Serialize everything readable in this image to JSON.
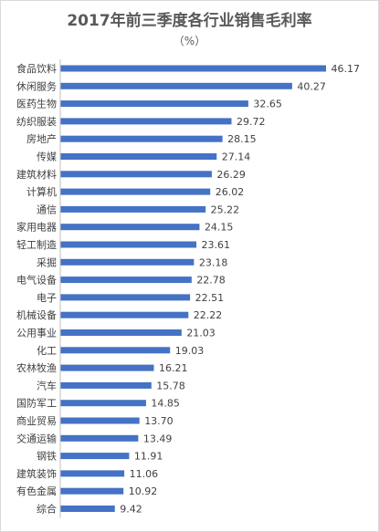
{
  "chart_data": {
    "type": "bar",
    "orientation": "horizontal",
    "title": "2017年前三季度各行业销售毛利率",
    "subtitle": "（%）",
    "categories": [
      "食品饮料",
      "休闲服务",
      "医药生物",
      "纺织服装",
      "房地产",
      "传媒",
      "建筑材料",
      "计算机",
      "通信",
      "家用电器",
      "轻工制造",
      "采掘",
      "电气设备",
      "电子",
      "机械设备",
      "公用事业",
      "化工",
      "农林牧渔",
      "汽车",
      "国防军工",
      "商业贸易",
      "交通运输",
      "钢铁",
      "建筑装饰",
      "有色金属",
      "综合"
    ],
    "values": [
      46.17,
      40.27,
      32.65,
      29.72,
      28.15,
      27.14,
      26.29,
      26.02,
      25.22,
      24.15,
      23.61,
      23.18,
      22.78,
      22.51,
      22.22,
      21.03,
      19.03,
      16.21,
      15.78,
      14.85,
      13.7,
      13.49,
      11.91,
      11.06,
      10.92,
      9.42
    ],
    "value_labels": [
      "46.17",
      "40.27",
      "32.65",
      "29.72",
      "28.15",
      "27.14",
      "26.29",
      "26.02",
      "25.22",
      "24.15",
      "23.61",
      "23.18",
      "22.78",
      "22.51",
      "22.22",
      "21.03",
      "19.03",
      "16.21",
      "15.78",
      "14.85",
      "13.70",
      "13.49",
      "11.91",
      "11.06",
      "10.92",
      "9.42"
    ],
    "xlim": [
      0,
      48
    ],
    "grid": false,
    "legend": false,
    "bar_color": "#4472c4",
    "axis_color": "#bfbfbf"
  }
}
